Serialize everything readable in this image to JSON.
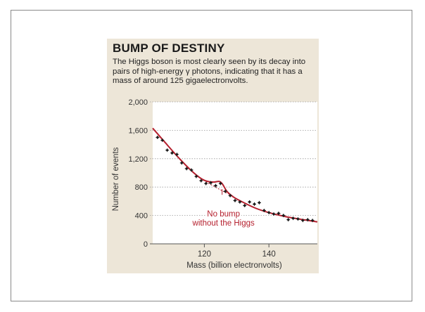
{
  "figure": {
    "title": "BUMP OF DESTINY",
    "subtitle": "The Higgs boson is most clearly seen by its decay into pairs of high-energy γ photons, indicating that it has a mass of around 125 gigaelectronvolts."
  },
  "chart_data": {
    "type": "scatter",
    "title": "BUMP OF DESTINY",
    "xlabel": "Mass (billion electronvolts)",
    "ylabel": "Number of events",
    "xlim": [
      104,
      155
    ],
    "ylim": [
      0,
      2000
    ],
    "x_ticks": [
      120,
      140
    ],
    "y_ticks": [
      0,
      400,
      800,
      1200,
      1600,
      2000
    ],
    "y_tick_labels": [
      "0",
      "400",
      "800",
      "1,200",
      "1,600",
      "2,000"
    ],
    "grid": "horizontal dotted",
    "series": [
      {
        "kind": "points",
        "color": "#1a1a1a",
        "x": [
          105.5,
          107,
          108.5,
          110,
          111.5,
          113,
          114.5,
          116,
          117.5,
          119,
          120.5,
          122,
          123.5,
          125,
          126.5,
          128,
          129.5,
          131,
          132.5,
          134,
          135.5,
          137,
          138.5,
          140,
          141.5,
          143,
          144.5,
          146,
          147.5,
          149,
          150.5,
          152,
          153.5
        ],
        "y": [
          1500,
          1460,
          1320,
          1280,
          1260,
          1140,
          1060,
          1040,
          950,
          890,
          850,
          860,
          820,
          850,
          740,
          680,
          610,
          590,
          540,
          590,
          560,
          580,
          470,
          440,
          420,
          430,
          400,
          340,
          360,
          350,
          330,
          340,
          330
        ]
      },
      {
        "kind": "fit-with-bump",
        "color": "#b5202e",
        "x": [
          104,
          108,
          112,
          116,
          119,
          121,
          123,
          124.5,
          125.5,
          127,
          129,
          132,
          136,
          140,
          145,
          150,
          155
        ],
        "y": [
          1630,
          1420,
          1215,
          1030,
          920,
          880,
          870,
          880,
          850,
          740,
          660,
          585,
          500,
          440,
          385,
          345,
          310
        ]
      },
      {
        "kind": "background-only",
        "color": "#b5202e",
        "x": [
          119,
          121,
          123,
          125,
          127,
          129
        ],
        "y": [
          920,
          860,
          810,
          760,
          715,
          675
        ]
      }
    ],
    "annotation": {
      "text_lines": [
        "No bump",
        "without the Higgs"
      ],
      "color": "#b5202e",
      "points_to": {
        "x": 125.5,
        "y": 770
      }
    }
  }
}
